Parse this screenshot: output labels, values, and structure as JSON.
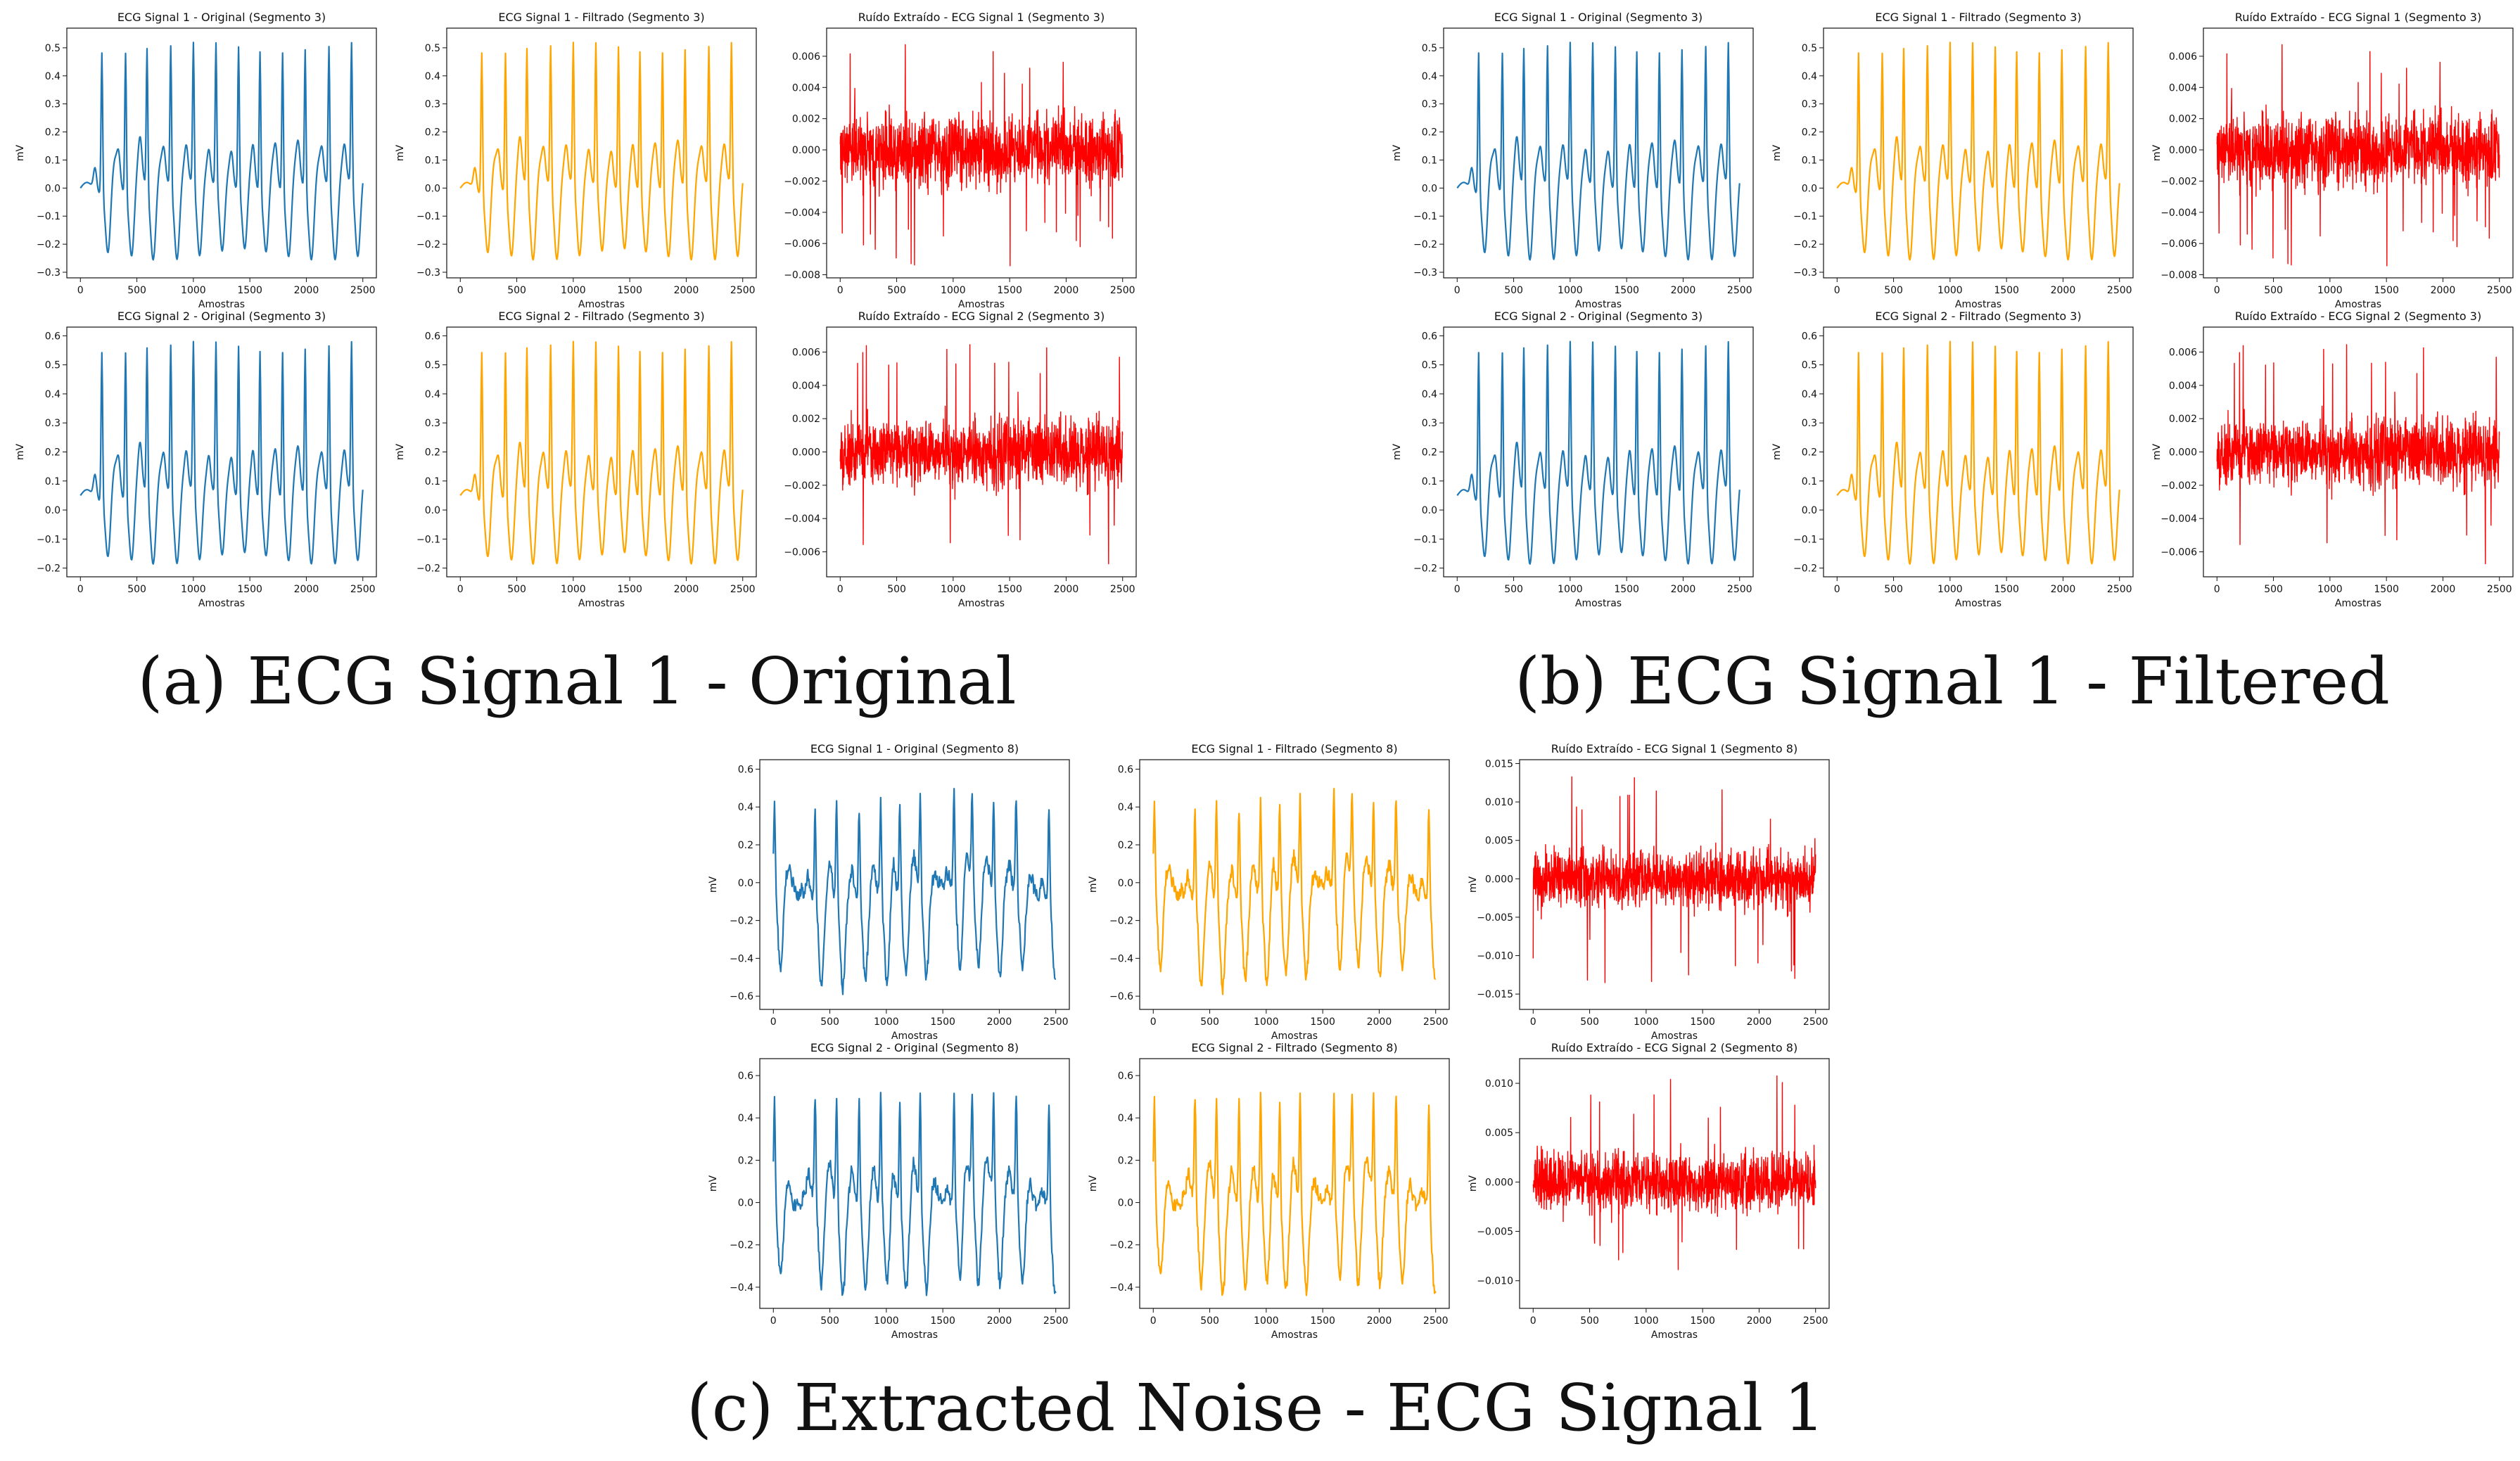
{
  "figure": {
    "captions": {
      "a": "(a) ECG Signal 1 - Original",
      "b": "(b) ECG Signal 1 - Filtered",
      "c": "(c) Extracted Noise - ECG Signal 1"
    }
  },
  "colors": {
    "original": "#1f77b4",
    "filtered": "#ffa500",
    "noise": "#ff0000",
    "axes": "#111111"
  },
  "chart_data": [
    {
      "id": "a1",
      "panel": "a",
      "type": "line",
      "kind": "original",
      "title": "ECG Signal 1 - Original (Segmento 3)",
      "xlabel": "Amostras",
      "ylabel": "mV",
      "xlim": [
        -120,
        2620
      ],
      "ylim": [
        -0.32,
        0.57
      ],
      "xticks": [
        0,
        500,
        1000,
        1500,
        2000,
        2500
      ],
      "yticks": [
        -0.3,
        -0.2,
        -0.1,
        0.0,
        0.1,
        0.2,
        0.3,
        0.4,
        0.5
      ],
      "ytick_labels": [
        "−0.3",
        "−0.2",
        "−0.1",
        "0.0",
        "0.1",
        "0.2",
        "0.3",
        "0.4",
        "0.5"
      ],
      "series": {
        "n": 2500,
        "peaks_x": [
          190,
          400,
          590,
          800,
          1000,
          1200,
          1400,
          1590,
          1790,
          1990,
          2200,
          2400
        ],
        "peak_y": 0.51,
        "baseline": 0.0,
        "trough_y": -0.24,
        "noise": 0.0,
        "seed": 11
      }
    },
    {
      "id": "a2",
      "panel": "a",
      "type": "line",
      "kind": "filtered",
      "title": "ECG Signal 1 - Filtrado (Segmento 3)",
      "xlabel": "Amostras",
      "ylabel": "mV",
      "xlim": [
        -120,
        2620
      ],
      "ylim": [
        -0.32,
        0.57
      ],
      "xticks": [
        0,
        500,
        1000,
        1500,
        2000,
        2500
      ],
      "yticks": [
        -0.3,
        -0.2,
        -0.1,
        0.0,
        0.1,
        0.2,
        0.3,
        0.4,
        0.5
      ],
      "ytick_labels": [
        "−0.3",
        "−0.2",
        "−0.1",
        "0.0",
        "0.1",
        "0.2",
        "0.3",
        "0.4",
        "0.5"
      ],
      "series": {
        "n": 2500,
        "peaks_x": [
          190,
          400,
          590,
          800,
          1000,
          1200,
          1400,
          1590,
          1790,
          1990,
          2200,
          2400
        ],
        "peak_y": 0.51,
        "baseline": 0.0,
        "trough_y": -0.24,
        "noise": 0.0,
        "seed": 11
      }
    },
    {
      "id": "a3",
      "panel": "a",
      "type": "line",
      "kind": "noise",
      "title": "Ruído Extraído - ECG Signal 1 (Segmento 3)",
      "xlabel": "Amostras",
      "ylabel": "",
      "xlim": [
        -120,
        2620
      ],
      "ylim": [
        -0.0082,
        0.0078
      ],
      "xticks": [
        0,
        500,
        1000,
        1500,
        2000,
        2500
      ],
      "yticks": [
        -0.008,
        -0.006,
        -0.004,
        -0.002,
        0.0,
        0.002,
        0.004,
        0.006
      ],
      "ytick_labels": [
        "−0.008",
        "−0.006",
        "−0.004",
        "−0.002",
        "0.000",
        "0.002",
        "0.004",
        "0.006"
      ],
      "series": {
        "n": 2500,
        "amp": 0.0025,
        "spike_max": 0.0075,
        "spike_min": -0.0075,
        "seed": 3
      }
    },
    {
      "id": "a4",
      "panel": "a",
      "type": "line",
      "kind": "original",
      "title": "ECG Signal 2 - Original (Segmento 3)",
      "xlabel": "Amostras",
      "ylabel": "mV",
      "xlim": [
        -120,
        2620
      ],
      "ylim": [
        -0.23,
        0.63
      ],
      "xticks": [
        0,
        500,
        1000,
        1500,
        2000,
        2500
      ],
      "yticks": [
        -0.2,
        -0.1,
        0.0,
        0.1,
        0.2,
        0.3,
        0.4,
        0.5,
        0.6
      ],
      "ytick_labels": [
        "−0.2",
        "−0.1",
        "0.0",
        "0.1",
        "0.2",
        "0.3",
        "0.4",
        "0.5",
        "0.6"
      ],
      "series": {
        "n": 2500,
        "peaks_x": [
          190,
          400,
          590,
          800,
          1000,
          1200,
          1400,
          1590,
          1790,
          1990,
          2200,
          2400
        ],
        "peak_y": 0.57,
        "baseline": 0.05,
        "trough_y": -0.17,
        "noise": 0.0,
        "seed": 21
      }
    },
    {
      "id": "a5",
      "panel": "a",
      "type": "line",
      "kind": "filtered",
      "title": "ECG Signal 2 - Filtrado (Segmento 3)",
      "xlabel": "Amostras",
      "ylabel": "mV",
      "xlim": [
        -120,
        2620
      ],
      "ylim": [
        -0.23,
        0.63
      ],
      "xticks": [
        0,
        500,
        1000,
        1500,
        2000,
        2500
      ],
      "yticks": [
        -0.2,
        -0.1,
        0.0,
        0.1,
        0.2,
        0.3,
        0.4,
        0.5,
        0.6
      ],
      "ytick_labels": [
        "−0.2",
        "−0.1",
        "0.0",
        "0.1",
        "0.2",
        "0.3",
        "0.4",
        "0.5",
        "0.6"
      ],
      "series": {
        "n": 2500,
        "peaks_x": [
          190,
          400,
          590,
          800,
          1000,
          1200,
          1400,
          1590,
          1790,
          1990,
          2200,
          2400
        ],
        "peak_y": 0.57,
        "baseline": 0.05,
        "trough_y": -0.17,
        "noise": 0.0,
        "seed": 21
      }
    },
    {
      "id": "a6",
      "panel": "a",
      "type": "line",
      "kind": "noise",
      "title": "Ruído Extraído - ECG Signal 2 (Segmento 3)",
      "xlabel": "Amostras",
      "ylabel": "",
      "xlim": [
        -120,
        2620
      ],
      "ylim": [
        -0.0075,
        0.0075
      ],
      "xticks": [
        0,
        500,
        1000,
        1500,
        2000,
        2500
      ],
      "yticks": [
        -0.006,
        -0.004,
        -0.002,
        0.0,
        0.002,
        0.004,
        0.006
      ],
      "ytick_labels": [
        "−0.006",
        "−0.004",
        "−0.002",
        "0.000",
        "0.002",
        "0.004",
        "0.006"
      ],
      "series": {
        "n": 2500,
        "amp": 0.0022,
        "spike_max": 0.0068,
        "spike_min": -0.0068,
        "seed": 5
      }
    },
    {
      "id": "b1",
      "panel": "b",
      "type": "line",
      "kind": "original",
      "title": "ECG Signal 1 - Original (Segmento 3)",
      "xlabel": "Amostras",
      "ylabel": "mV",
      "xlim": [
        -120,
        2620
      ],
      "ylim": [
        -0.32,
        0.57
      ],
      "xticks": [
        0,
        500,
        1000,
        1500,
        2000,
        2500
      ],
      "yticks": [
        -0.3,
        -0.2,
        -0.1,
        0.0,
        0.1,
        0.2,
        0.3,
        0.4,
        0.5
      ],
      "ytick_labels": [
        "−0.3",
        "−0.2",
        "−0.1",
        "0.0",
        "0.1",
        "0.2",
        "0.3",
        "0.4",
        "0.5"
      ],
      "series": {
        "n": 2500,
        "peaks_x": [
          190,
          400,
          590,
          800,
          1000,
          1200,
          1400,
          1590,
          1790,
          1990,
          2200,
          2400
        ],
        "peak_y": 0.51,
        "baseline": 0.0,
        "trough_y": -0.24,
        "noise": 0.0,
        "seed": 11
      }
    },
    {
      "id": "b2",
      "panel": "b",
      "type": "line",
      "kind": "filtered",
      "title": "ECG Signal 1 - Filtrado (Segmento 3)",
      "xlabel": "Amostras",
      "ylabel": "mV",
      "xlim": [
        -120,
        2620
      ],
      "ylim": [
        -0.32,
        0.57
      ],
      "xticks": [
        0,
        500,
        1000,
        1500,
        2000,
        2500
      ],
      "yticks": [
        -0.3,
        -0.2,
        -0.1,
        0.0,
        0.1,
        0.2,
        0.3,
        0.4,
        0.5
      ],
      "ytick_labels": [
        "−0.3",
        "−0.2",
        "−0.1",
        "0.0",
        "0.1",
        "0.2",
        "0.3",
        "0.4",
        "0.5"
      ],
      "series": {
        "n": 2500,
        "peaks_x": [
          190,
          400,
          590,
          800,
          1000,
          1200,
          1400,
          1590,
          1790,
          1990,
          2200,
          2400
        ],
        "peak_y": 0.51,
        "baseline": 0.0,
        "trough_y": -0.24,
        "noise": 0.0,
        "seed": 11
      }
    },
    {
      "id": "b3",
      "panel": "b",
      "type": "line",
      "kind": "noise",
      "title": "Ruído Extraído - ECG Signal 1 (Segmento 3)",
      "xlabel": "Amostras",
      "ylabel": "mV",
      "xlim": [
        -120,
        2620
      ],
      "ylim": [
        -0.0082,
        0.0078
      ],
      "xticks": [
        0,
        500,
        1000,
        1500,
        2000,
        2500
      ],
      "yticks": [
        -0.008,
        -0.006,
        -0.004,
        -0.002,
        0.0,
        0.002,
        0.004,
        0.006
      ],
      "ytick_labels": [
        "−0.008",
        "−0.006",
        "−0.004",
        "−0.002",
        "0.000",
        "0.002",
        "0.004",
        "0.006"
      ],
      "series": {
        "n": 2500,
        "amp": 0.0025,
        "spike_max": 0.0075,
        "spike_min": -0.0075,
        "seed": 3
      }
    },
    {
      "id": "b4",
      "panel": "b",
      "type": "line",
      "kind": "original",
      "title": "ECG Signal 2 - Original (Segmento 3)",
      "xlabel": "Amostras",
      "ylabel": "mV",
      "xlim": [
        -120,
        2620
      ],
      "ylim": [
        -0.23,
        0.63
      ],
      "xticks": [
        0,
        500,
        1000,
        1500,
        2000,
        2500
      ],
      "yticks": [
        -0.2,
        -0.1,
        0.0,
        0.1,
        0.2,
        0.3,
        0.4,
        0.5,
        0.6
      ],
      "ytick_labels": [
        "−0.2",
        "−0.1",
        "0.0",
        "0.1",
        "0.2",
        "0.3",
        "0.4",
        "0.5",
        "0.6"
      ],
      "series": {
        "n": 2500,
        "peaks_x": [
          190,
          400,
          590,
          800,
          1000,
          1200,
          1400,
          1590,
          1790,
          1990,
          2200,
          2400
        ],
        "peak_y": 0.57,
        "baseline": 0.05,
        "trough_y": -0.17,
        "noise": 0.0,
        "seed": 21
      }
    },
    {
      "id": "b5",
      "panel": "b",
      "type": "line",
      "kind": "filtered",
      "title": "ECG Signal 2 - Filtrado (Segmento 3)",
      "xlabel": "Amostras",
      "ylabel": "mV",
      "xlim": [
        -120,
        2620
      ],
      "ylim": [
        -0.23,
        0.63
      ],
      "xticks": [
        0,
        500,
        1000,
        1500,
        2000,
        2500
      ],
      "yticks": [
        -0.2,
        -0.1,
        0.0,
        0.1,
        0.2,
        0.3,
        0.4,
        0.5,
        0.6
      ],
      "ytick_labels": [
        "−0.2",
        "−0.1",
        "0.0",
        "0.1",
        "0.2",
        "0.3",
        "0.4",
        "0.5",
        "0.6"
      ],
      "series": {
        "n": 2500,
        "peaks_x": [
          190,
          400,
          590,
          800,
          1000,
          1200,
          1400,
          1590,
          1790,
          1990,
          2200,
          2400
        ],
        "peak_y": 0.57,
        "baseline": 0.05,
        "trough_y": -0.17,
        "noise": 0.0,
        "seed": 21
      }
    },
    {
      "id": "b6",
      "panel": "b",
      "type": "line",
      "kind": "noise",
      "title": "Ruído Extraído - ECG Signal 2 (Segmento 3)",
      "xlabel": "Amostras",
      "ylabel": "mV",
      "xlim": [
        -120,
        2620
      ],
      "ylim": [
        -0.0075,
        0.0075
      ],
      "xticks": [
        0,
        500,
        1000,
        1500,
        2000,
        2500
      ],
      "yticks": [
        -0.006,
        -0.004,
        -0.002,
        0.0,
        0.002,
        0.004,
        0.006
      ],
      "ytick_labels": [
        "−0.006",
        "−0.004",
        "−0.002",
        "0.000",
        "0.002",
        "0.004",
        "0.006"
      ],
      "series": {
        "n": 2500,
        "amp": 0.0022,
        "spike_max": 0.0068,
        "spike_min": -0.0068,
        "seed": 5
      }
    },
    {
      "id": "c1",
      "panel": "c",
      "type": "line",
      "kind": "original",
      "title": "ECG Signal 1 - Original (Segmento 8)",
      "xlabel": "Amostras",
      "ylabel": "mV",
      "xlim": [
        -120,
        2620
      ],
      "ylim": [
        -0.67,
        0.65
      ],
      "xticks": [
        0,
        500,
        1000,
        1500,
        2000,
        2500
      ],
      "yticks": [
        -0.6,
        -0.4,
        -0.2,
        0.0,
        0.2,
        0.4,
        0.6
      ],
      "ytick_labels": [
        "−0.6",
        "−0.4",
        "−0.2",
        "0.0",
        "0.2",
        "0.4",
        "0.6"
      ],
      "series": {
        "n": 2500,
        "peaks_x": [
          10,
          370,
          560,
          760,
          950,
          1120,
          1300,
          1600,
          1760,
          1950,
          2150,
          2440
        ],
        "peak_y": 0.45,
        "baseline": -0.05,
        "trough_y": -0.5,
        "noise": 0.12,
        "seed": 41
      }
    },
    {
      "id": "c2",
      "panel": "c",
      "type": "line",
      "kind": "filtered",
      "title": "ECG Signal 1 - Filtrado (Segmento 8)",
      "xlabel": "Amostras",
      "ylabel": "mV",
      "xlim": [
        -120,
        2620
      ],
      "ylim": [
        -0.67,
        0.65
      ],
      "xticks": [
        0,
        500,
        1000,
        1500,
        2000,
        2500
      ],
      "yticks": [
        -0.6,
        -0.4,
        -0.2,
        0.0,
        0.2,
        0.4,
        0.6
      ],
      "ytick_labels": [
        "−0.6",
        "−0.4",
        "−0.2",
        "0.0",
        "0.2",
        "0.4",
        "0.6"
      ],
      "series": {
        "n": 2500,
        "peaks_x": [
          10,
          370,
          560,
          760,
          950,
          1120,
          1300,
          1600,
          1760,
          1950,
          2150,
          2440
        ],
        "peak_y": 0.45,
        "baseline": -0.05,
        "trough_y": -0.5,
        "noise": 0.12,
        "seed": 41
      }
    },
    {
      "id": "c3",
      "panel": "c",
      "type": "line",
      "kind": "noise",
      "title": "Ruído Extraído - ECG Signal 1 (Segmento 8)",
      "xlabel": "Amostras",
      "ylabel": "mV",
      "xlim": [
        -120,
        2620
      ],
      "ylim": [
        -0.017,
        0.0155
      ],
      "xticks": [
        0,
        500,
        1000,
        1500,
        2000,
        2500
      ],
      "yticks": [
        -0.015,
        -0.01,
        -0.005,
        0.0,
        0.005,
        0.01,
        0.015
      ],
      "ytick_labels": [
        "−0.015",
        "−0.010",
        "−0.005",
        "0.000",
        "0.005",
        "0.010",
        "0.015"
      ],
      "series": {
        "n": 2500,
        "amp": 0.004,
        "spike_max": 0.014,
        "spike_min": -0.015,
        "seed": 9
      }
    },
    {
      "id": "c4",
      "panel": "c",
      "type": "line",
      "kind": "original",
      "title": "ECG Signal 2 - Original (Segmento 8)",
      "xlabel": "Amostras",
      "ylabel": "mV",
      "xlim": [
        -120,
        2620
      ],
      "ylim": [
        -0.5,
        0.68
      ],
      "xticks": [
        0,
        500,
        1000,
        1500,
        2000,
        2500
      ],
      "yticks": [
        -0.4,
        -0.2,
        0.0,
        0.2,
        0.4,
        0.6
      ],
      "ytick_labels": [
        "−0.4",
        "−0.2",
        "0.0",
        "0.2",
        "0.4",
        "0.6"
      ],
      "series": {
        "n": 2500,
        "peaks_x": [
          10,
          370,
          560,
          760,
          950,
          1120,
          1300,
          1600,
          1760,
          1950,
          2150,
          2440
        ],
        "peak_y": 0.5,
        "baseline": 0.0,
        "trough_y": -0.4,
        "noise": 0.1,
        "seed": 51
      }
    },
    {
      "id": "c5",
      "panel": "c",
      "type": "line",
      "kind": "filtered",
      "title": "ECG Signal 2 - Filtrado (Segmento 8)",
      "xlabel": "Amostras",
      "ylabel": "mV",
      "xlim": [
        -120,
        2620
      ],
      "ylim": [
        -0.5,
        0.68
      ],
      "xticks": [
        0,
        500,
        1000,
        1500,
        2000,
        2500
      ],
      "yticks": [
        -0.4,
        -0.2,
        0.0,
        0.2,
        0.4,
        0.6
      ],
      "ytick_labels": [
        "−0.4",
        "−0.2",
        "0.0",
        "0.2",
        "0.4",
        "0.6"
      ],
      "series": {
        "n": 2500,
        "peaks_x": [
          10,
          370,
          560,
          760,
          950,
          1120,
          1300,
          1600,
          1760,
          1950,
          2150,
          2440
        ],
        "peak_y": 0.5,
        "baseline": 0.0,
        "trough_y": -0.4,
        "noise": 0.1,
        "seed": 51
      }
    },
    {
      "id": "c6",
      "panel": "c",
      "type": "line",
      "kind": "noise",
      "title": "Ruído Extraído - ECG Signal 2 (Segmento 8)",
      "xlabel": "Amostras",
      "ylabel": "mV",
      "xlim": [
        -120,
        2620
      ],
      "ylim": [
        -0.0128,
        0.0125
      ],
      "xticks": [
        0,
        500,
        1000,
        1500,
        2000,
        2500
      ],
      "yticks": [
        -0.01,
        -0.005,
        0.0,
        0.005,
        0.01
      ],
      "ytick_labels": [
        "−0.010",
        "−0.005",
        "0.000",
        "0.005",
        "0.010"
      ],
      "series": {
        "n": 2500,
        "amp": 0.0032,
        "spike_max": 0.012,
        "spike_min": -0.011,
        "seed": 13
      }
    }
  ]
}
